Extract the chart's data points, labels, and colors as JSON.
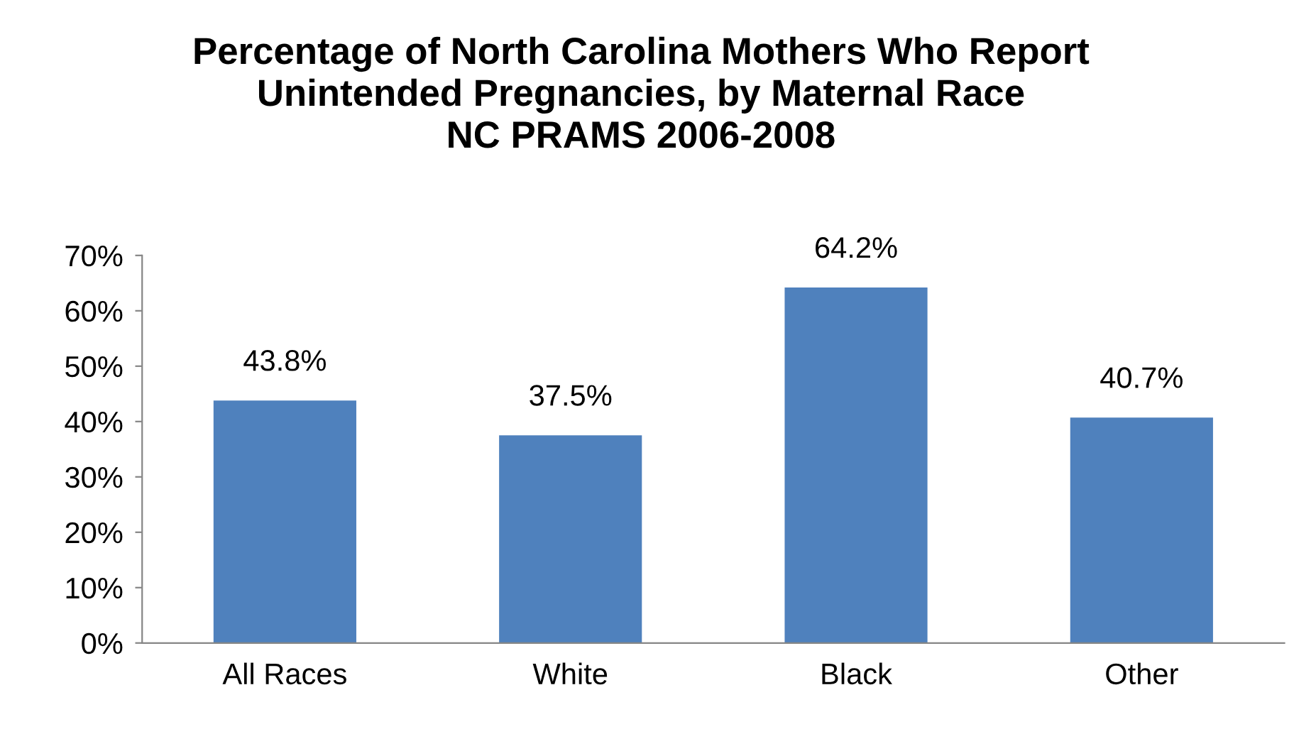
{
  "chart_data": {
    "type": "bar",
    "title": "Percentage of North Carolina Mothers Who Report\nUnintended Pregnancies, by Maternal Race\nNC PRAMS 2006-2008",
    "categories": [
      "All Races",
      "White",
      "Black",
      "Other"
    ],
    "values": [
      43.8,
      37.5,
      64.2,
      40.7
    ],
    "value_labels": [
      "43.8%",
      "37.5%",
      "64.2%",
      "40.7%"
    ],
    "color": "#4f81bd",
    "ylim": [
      0,
      70
    ],
    "yticks": [
      {
        "value": 0,
        "label": "0%"
      },
      {
        "value": 10,
        "label": "10%"
      },
      {
        "value": 20,
        "label": "20%"
      },
      {
        "value": 30,
        "label": "30%"
      },
      {
        "value": 40,
        "label": "40%"
      },
      {
        "value": 50,
        "label": "50%"
      },
      {
        "value": 60,
        "label": "60%"
      },
      {
        "value": 70,
        "label": "70%"
      }
    ],
    "grid": false,
    "legend": false
  }
}
